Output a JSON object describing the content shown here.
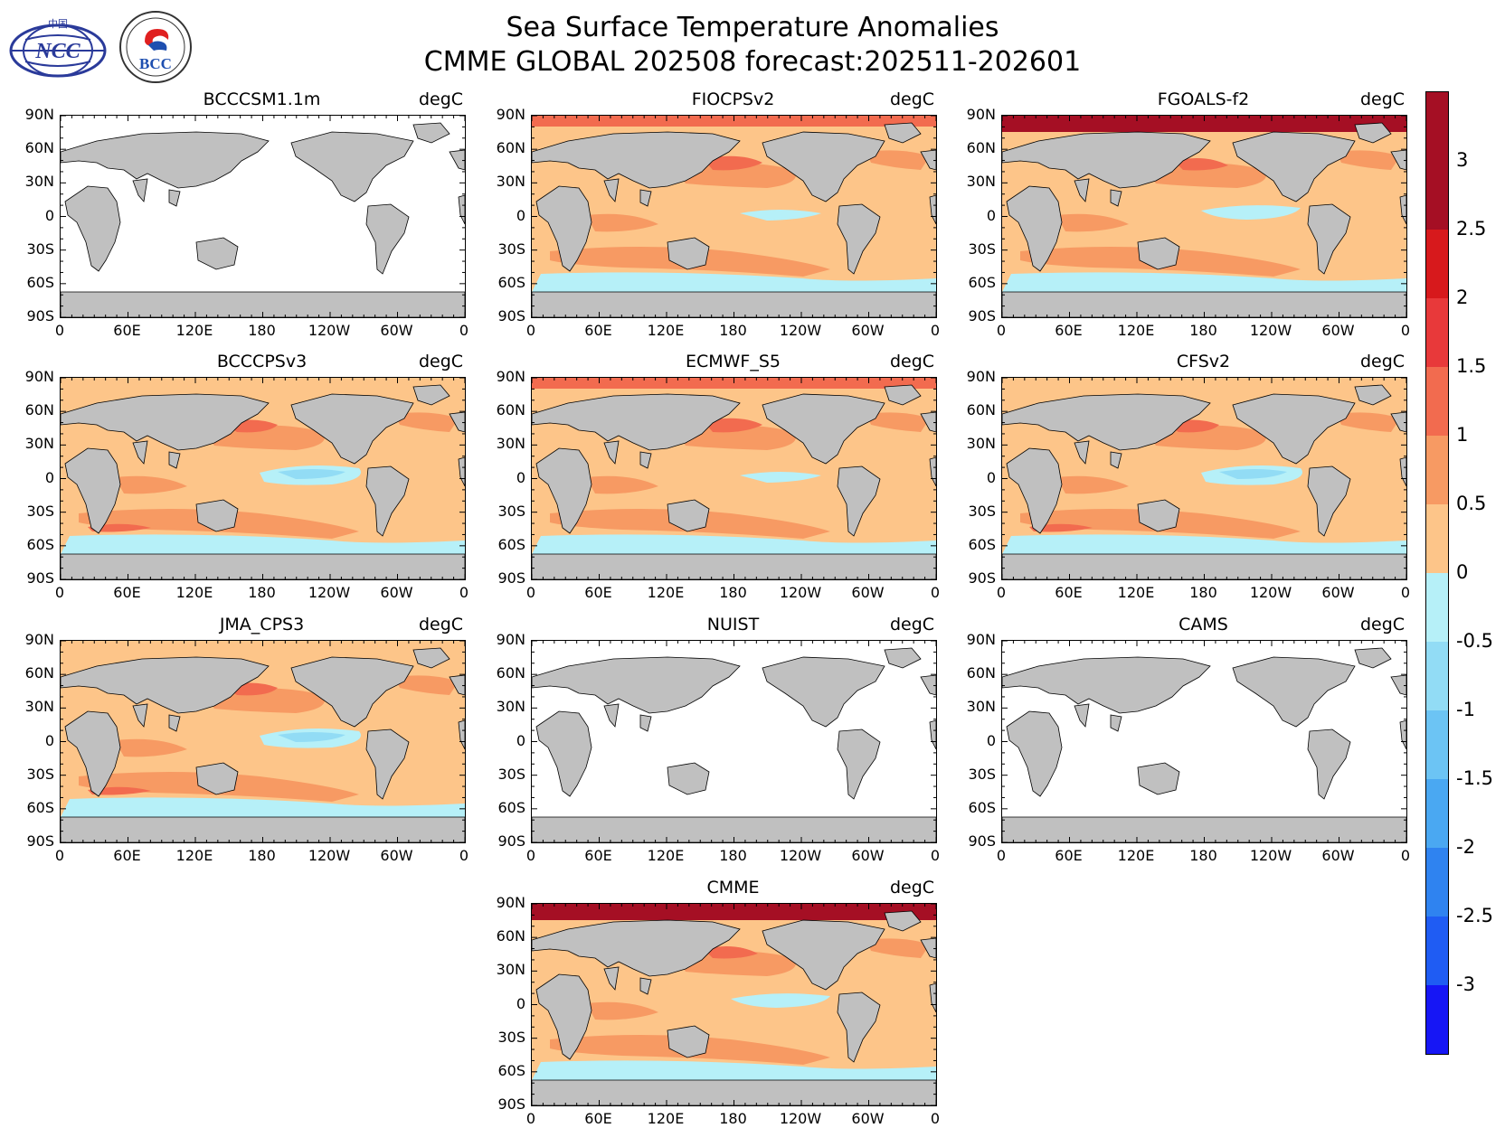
{
  "header": {
    "title_line1": "Sea Surface Temperature Anomalies",
    "title_line2": "CMME GLOBAL 202508 forecast:202511-202601"
  },
  "logos": {
    "ncc": {
      "text": "NCC",
      "small": "中国"
    },
    "bcc": {
      "text": "BCC"
    }
  },
  "panels": [
    {
      "name": "BCCCSM1.1m",
      "unit": "degC",
      "field": "empty"
    },
    {
      "name": "FIOCPSv2",
      "unit": "degC",
      "field": "warm"
    },
    {
      "name": "FGOALS-f2",
      "unit": "degC",
      "field": "arctic-hot"
    },
    {
      "name": "BCCCPSv3",
      "unit": "degC",
      "field": "lanina"
    },
    {
      "name": "ECMWF_S5",
      "unit": "degC",
      "field": "warm"
    },
    {
      "name": "CFSv2",
      "unit": "degC",
      "field": "lanina"
    },
    {
      "name": "JMA_CPS3",
      "unit": "degC",
      "field": "lanina"
    },
    {
      "name": "NUIST",
      "unit": "degC",
      "field": "empty"
    },
    {
      "name": "CAMS",
      "unit": "degC",
      "field": "empty"
    },
    {
      "name": "CMME",
      "unit": "degC",
      "field": "arctic-hot"
    }
  ],
  "axes": {
    "lat_labels": [
      "90N",
      "60N",
      "30N",
      "0",
      "30S",
      "60S",
      "90S"
    ],
    "lon_labels": [
      "0",
      "60E",
      "120E",
      "180",
      "120W",
      "60W",
      "0"
    ]
  },
  "colorbar": {
    "labels": [
      "3",
      "2.5",
      "2",
      "1.5",
      "1",
      "0.5",
      "0",
      "-0.5",
      "-1",
      "-1.5",
      "-2",
      "-2.5",
      "-3"
    ],
    "colors": [
      "#a50f24",
      "#d7191c",
      "#e8393a",
      "#f26b4f",
      "#f79a63",
      "#fdc589",
      "#b6f0f8",
      "#92dcf5",
      "#6cc4f4",
      "#4aa8f2",
      "#2f83f0",
      "#1f5cf3",
      "#1616f5"
    ],
    "land_color": "#c0c0c0"
  }
}
